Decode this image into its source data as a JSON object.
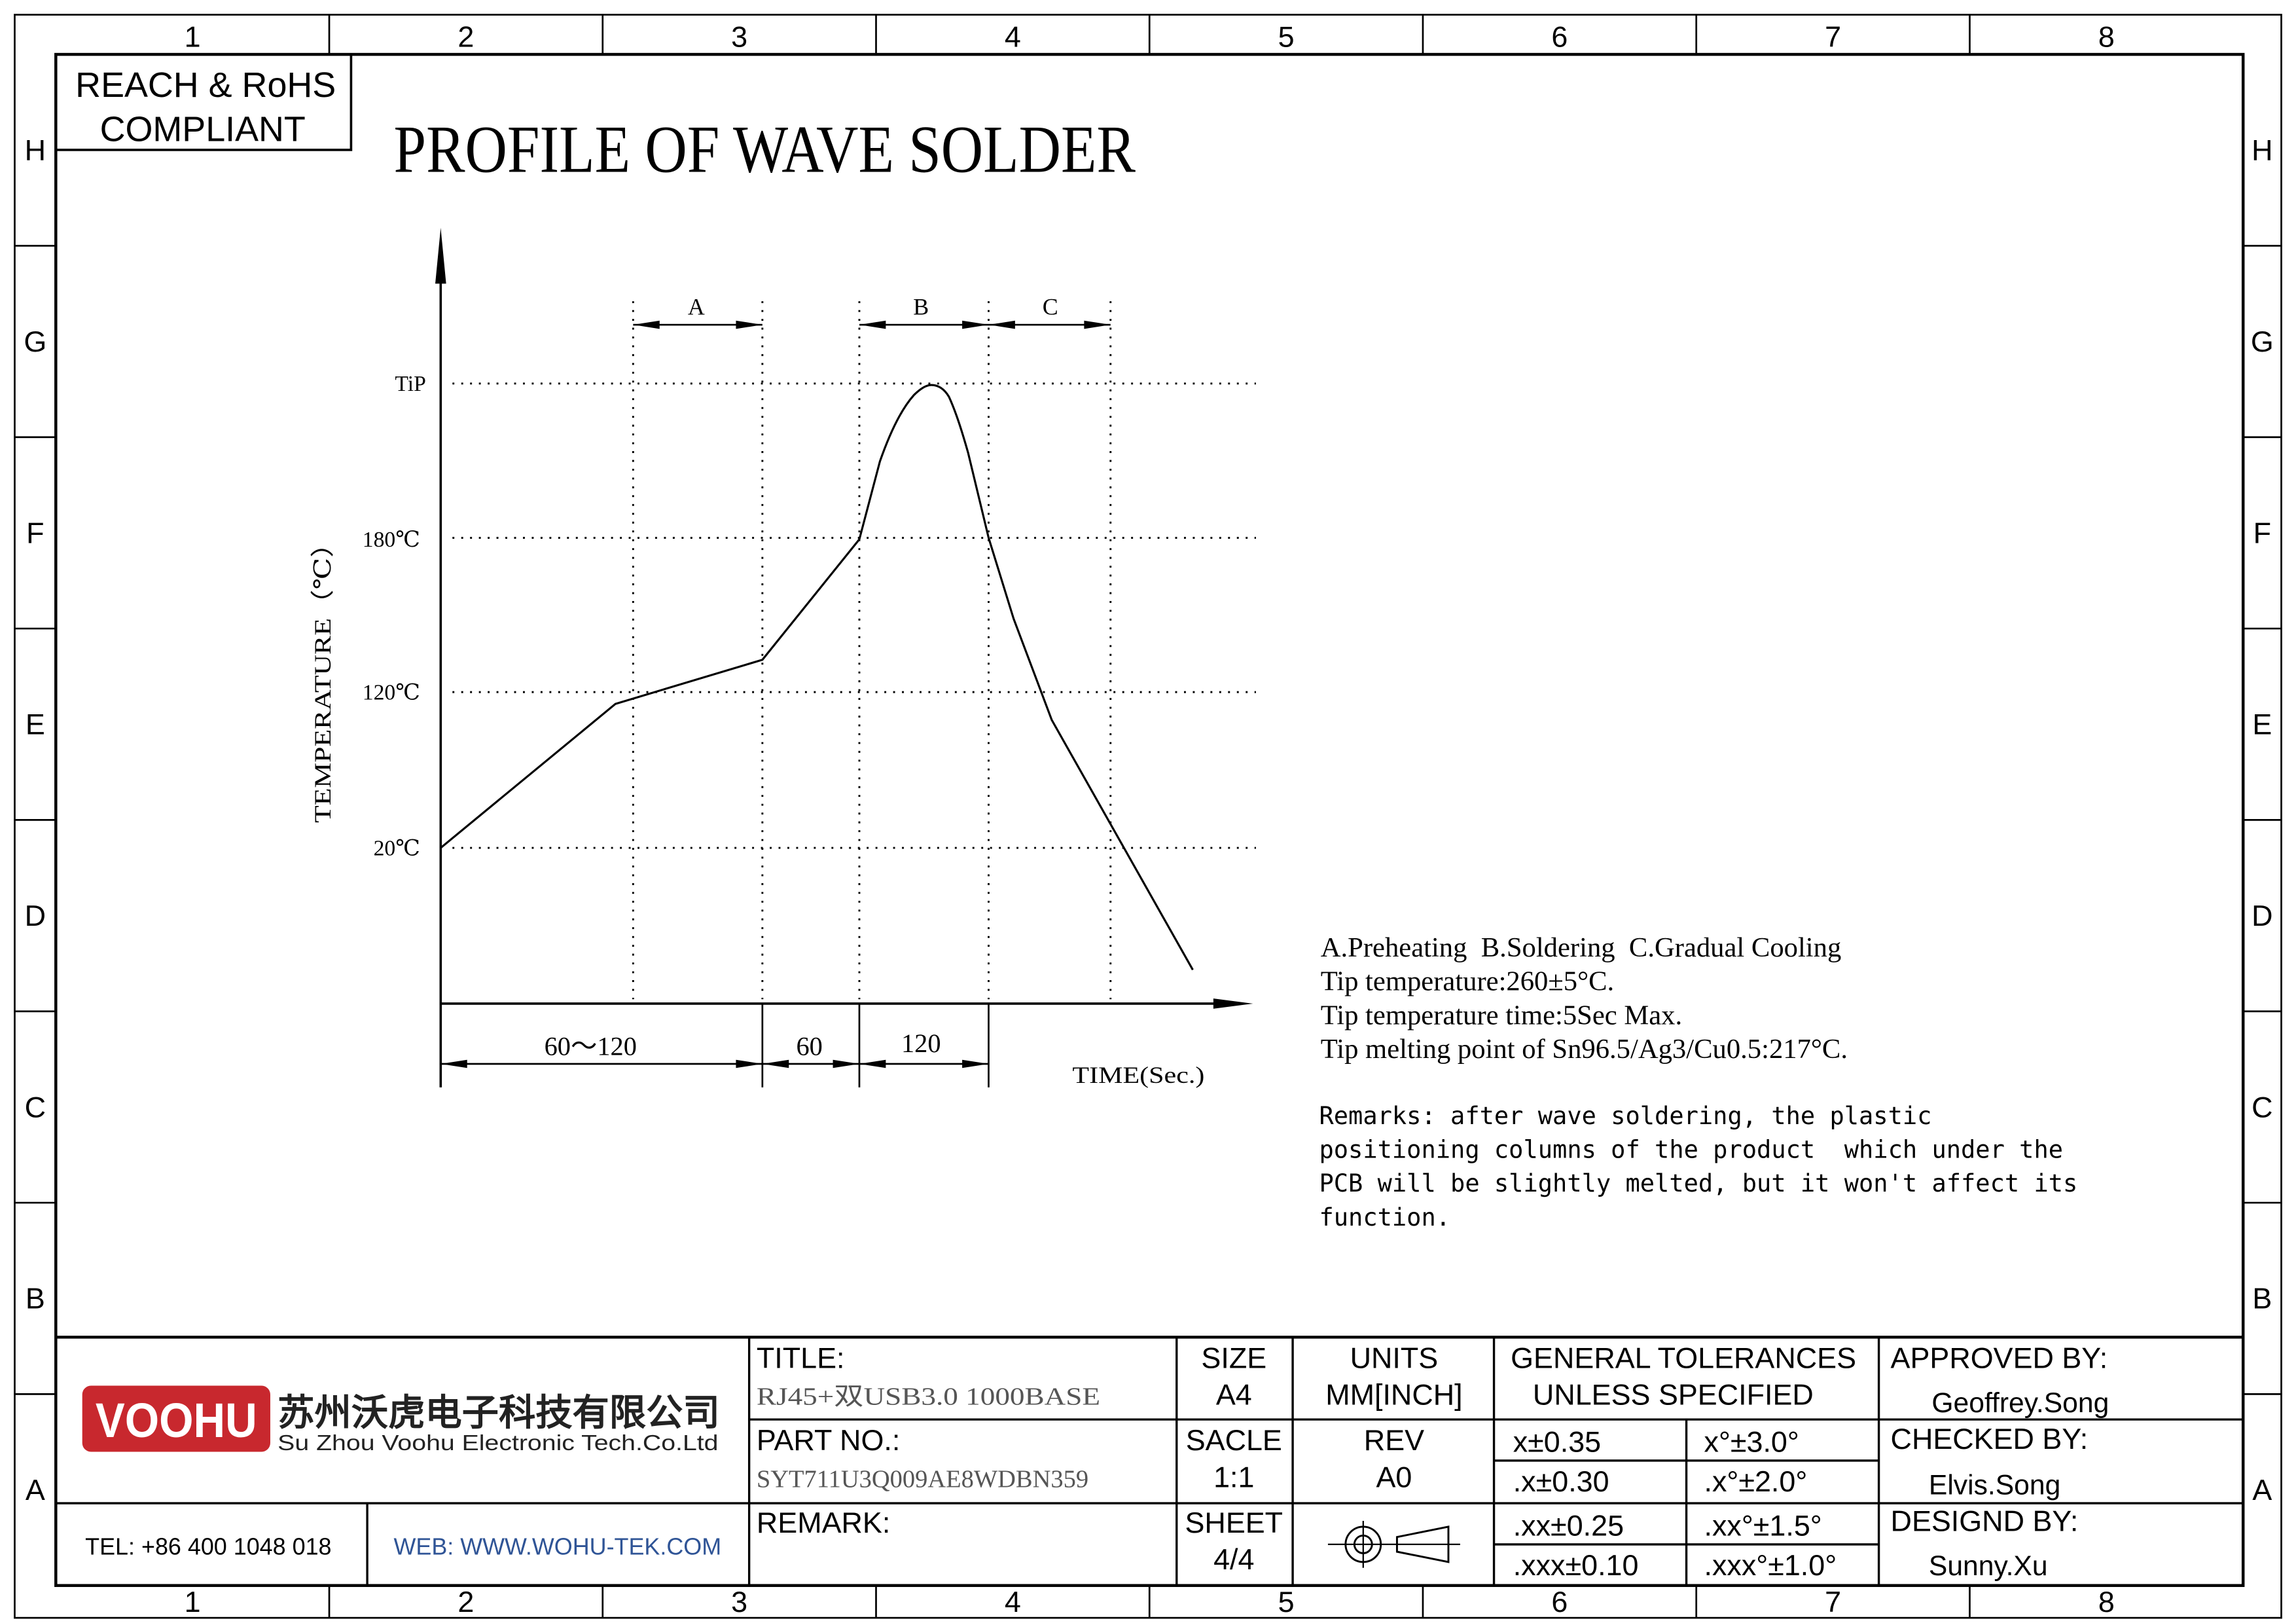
{
  "sheet": {
    "column_labels": [
      "1",
      "2",
      "3",
      "4",
      "5",
      "6",
      "7",
      "8"
    ],
    "row_labels": [
      "H",
      "G",
      "F",
      "E",
      "D",
      "C",
      "B",
      "A"
    ]
  },
  "compliance": {
    "line1": "REACH & RoHS",
    "line2": "COMPLIANT"
  },
  "title": "PROFILE OF WAVE SOLDER",
  "profile": {
    "y_axis_label": "TEMPERATURE（℃）",
    "y_ticks": [
      "TiP",
      "180℃",
      "120℃",
      "20℃"
    ],
    "x_axis_label": "TIME(Sec.)",
    "zones": [
      "A",
      "B",
      "C"
    ],
    "durations": [
      "60～120",
      "60",
      "120"
    ]
  },
  "notes": {
    "legend": "A.Preheating  B.Soldering  C.Gradual Cooling",
    "lines": [
      "Tip temperature:260±5°C.",
      "Tip temperature time:5Sec Max.",
      "Tip melting point of Sn96.5/Ag3/Cu0.5:217°C."
    ],
    "remarks": [
      "Remarks: after wave soldering, the plastic",
      "positioning columns of the product  which under the",
      "PCB will be slightly melted, but it won't affect its",
      "function."
    ]
  },
  "title_block": {
    "company": {
      "logo_text": "VOOHU",
      "name_cn": "苏州沃虎电子科技有限公司",
      "name_en": "Su Zhou Voohu Electronic Tech.Co.Ltd",
      "tel": "TEL: +86 400 1048 018",
      "web": "WEB: WWW.WOHU-TEK.COM"
    },
    "title_label": "TITLE:",
    "title_value": "RJ45+双USB3.0 1000BASE",
    "part_label": "PART NO.:",
    "part_value": "SYT711U3Q009AE8WDBN359",
    "remark_label": "REMARK:",
    "size_label": "SIZE",
    "size_value": "A4",
    "scale_label": "SACLE",
    "scale_value": "1:1",
    "sheet_label": "SHEET",
    "sheet_value": "4/4",
    "units_label": "UNITS",
    "units_value": "MM[INCH]",
    "rev_label": "REV",
    "rev_value": "A0",
    "tolerances_title": [
      "GENERAL TOLERANCES",
      "UNLESS SPECIFIED"
    ],
    "tolerances": [
      [
        "x±0.35",
        "x°±3.0°"
      ],
      [
        ".x±0.30",
        ".x°±2.0°"
      ],
      [
        ".xx±0.25",
        ".xx°±1.5°"
      ],
      [
        ".xxx±0.10",
        ".xxx°±1.0°"
      ]
    ],
    "approved_label": "APPROVED BY:",
    "approved_by": "Geoffrey.Song",
    "checked_label": "CHECKED BY:",
    "checked_by": "Elvis.Song",
    "designed_label": "DESIGND BY:",
    "designed_by": "Sunny.Xu"
  },
  "colors": {
    "line": "#000000",
    "logo_red": "#c8282e",
    "web_blue": "#2f5496",
    "filled_value_gray": "#555555"
  }
}
